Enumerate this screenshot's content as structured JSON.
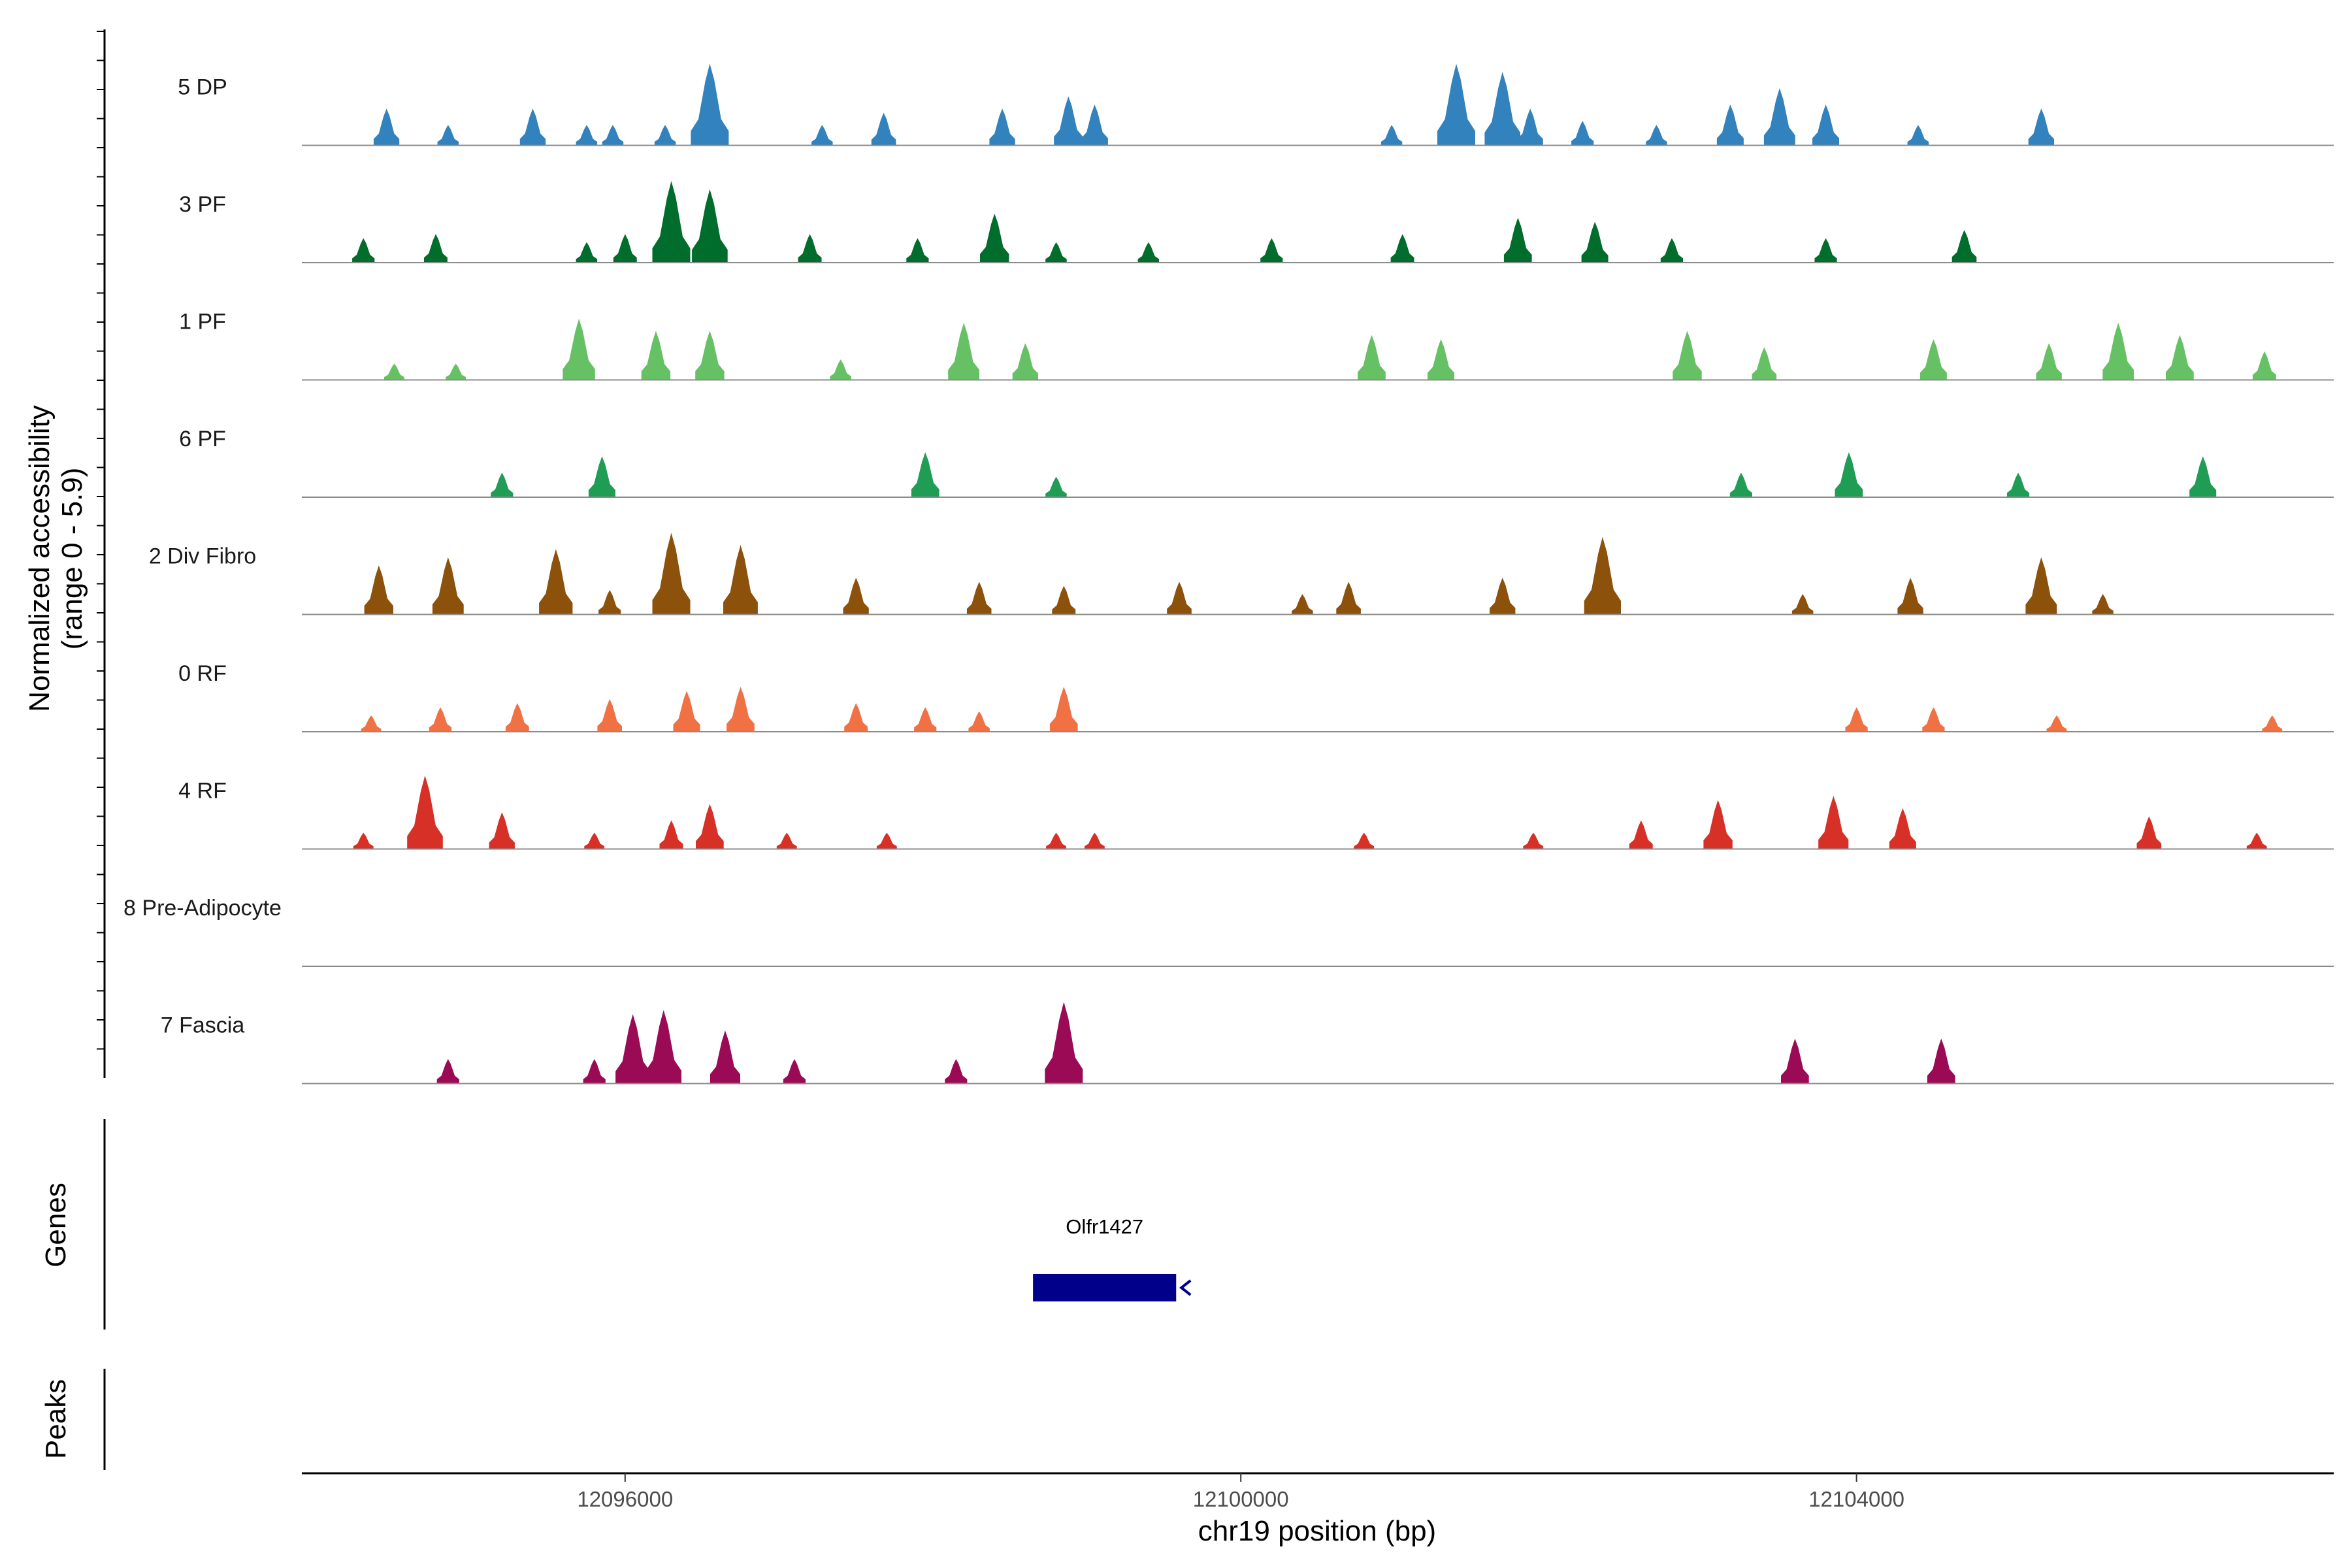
{
  "chart_data": {
    "type": "coverage",
    "ylabel": "Normalized accessibility",
    "ylabel_range": "(range 0 - 5.9)",
    "ylim": [
      0,
      5.9
    ],
    "xlabel": "chr19 position (bp)",
    "xlim": [
      12093900,
      12107100
    ],
    "x_ticks": [
      12096000,
      12100000,
      12104000
    ],
    "x_tick_labels": [
      "12096000",
      "12100000",
      "12104000"
    ],
    "tracks": [
      {
        "name": "5 DP",
        "color": "#3182bd",
        "peaks": [
          [
            12094450,
            0.45
          ],
          [
            12094850,
            0.25
          ],
          [
            12095400,
            0.45
          ],
          [
            12095750,
            0.25
          ],
          [
            12095920,
            0.25
          ],
          [
            12096260,
            0.25
          ],
          [
            12096550,
            1.0
          ],
          [
            12097280,
            0.25
          ],
          [
            12097680,
            0.4
          ],
          [
            12098450,
            0.45
          ],
          [
            12098880,
            0.6
          ],
          [
            12099050,
            0.5
          ],
          [
            12100980,
            0.25
          ],
          [
            12101400,
            1.0
          ],
          [
            12101700,
            0.9
          ],
          [
            12101880,
            0.45
          ],
          [
            12102220,
            0.3
          ],
          [
            12102700,
            0.25
          ],
          [
            12103180,
            0.5
          ],
          [
            12103500,
            0.7
          ],
          [
            12103800,
            0.5
          ],
          [
            12104400,
            0.25
          ],
          [
            12105200,
            0.45
          ]
        ]
      },
      {
        "name": "3 PF",
        "color": "#006d2c",
        "peaks": [
          [
            12094300,
            0.3
          ],
          [
            12094770,
            0.35
          ],
          [
            12095750,
            0.25
          ],
          [
            12096000,
            0.35
          ],
          [
            12096300,
            1.0
          ],
          [
            12096550,
            0.9
          ],
          [
            12097200,
            0.35
          ],
          [
            12097900,
            0.3
          ],
          [
            12098400,
            0.6
          ],
          [
            12098800,
            0.25
          ],
          [
            12099400,
            0.25
          ],
          [
            12100200,
            0.3
          ],
          [
            12101050,
            0.35
          ],
          [
            12101800,
            0.55
          ],
          [
            12102300,
            0.5
          ],
          [
            12102800,
            0.3
          ],
          [
            12103800,
            0.3
          ],
          [
            12104700,
            0.4
          ]
        ]
      },
      {
        "name": "1 PF",
        "color": "#66c164",
        "peaks": [
          [
            12094500,
            0.2
          ],
          [
            12094900,
            0.2
          ],
          [
            12095700,
            0.75
          ],
          [
            12096200,
            0.6
          ],
          [
            12096550,
            0.6
          ],
          [
            12097400,
            0.25
          ],
          [
            12098200,
            0.7
          ],
          [
            12098600,
            0.45
          ],
          [
            12100850,
            0.55
          ],
          [
            12101300,
            0.5
          ],
          [
            12102900,
            0.6
          ],
          [
            12103400,
            0.4
          ],
          [
            12104500,
            0.5
          ],
          [
            12105250,
            0.45
          ],
          [
            12105700,
            0.7
          ],
          [
            12106100,
            0.55
          ],
          [
            12106650,
            0.35
          ]
        ]
      },
      {
        "name": "6 PF",
        "color": "#1f9d55",
        "peaks": [
          [
            12095200,
            0.3
          ],
          [
            12095850,
            0.5
          ],
          [
            12097950,
            0.55
          ],
          [
            12098800,
            0.25
          ],
          [
            12103250,
            0.3
          ],
          [
            12103950,
            0.55
          ],
          [
            12105050,
            0.3
          ],
          [
            12106250,
            0.5
          ]
        ]
      },
      {
        "name": "2 Div Fibro",
        "color": "#8c510a",
        "peaks": [
          [
            12094400,
            0.6
          ],
          [
            12094850,
            0.7
          ],
          [
            12095550,
            0.8
          ],
          [
            12095900,
            0.3
          ],
          [
            12096300,
            1.0
          ],
          [
            12096750,
            0.85
          ],
          [
            12097500,
            0.45
          ],
          [
            12098300,
            0.4
          ],
          [
            12098850,
            0.35
          ],
          [
            12099600,
            0.4
          ],
          [
            12100400,
            0.25
          ],
          [
            12100700,
            0.4
          ],
          [
            12101700,
            0.45
          ],
          [
            12102350,
            0.95
          ],
          [
            12103650,
            0.25
          ],
          [
            12104350,
            0.45
          ],
          [
            12105200,
            0.7
          ],
          [
            12105600,
            0.25
          ]
        ]
      },
      {
        "name": "0 RF",
        "color": "#f07144",
        "peaks": [
          [
            12094350,
            0.2
          ],
          [
            12094800,
            0.3
          ],
          [
            12095300,
            0.35
          ],
          [
            12095900,
            0.4
          ],
          [
            12096400,
            0.5
          ],
          [
            12096750,
            0.55
          ],
          [
            12097500,
            0.35
          ],
          [
            12097950,
            0.3
          ],
          [
            12098300,
            0.25
          ],
          [
            12098850,
            0.55
          ],
          [
            12104000,
            0.3
          ],
          [
            12104500,
            0.3
          ],
          [
            12105300,
            0.2
          ],
          [
            12106700,
            0.2
          ]
        ]
      },
      {
        "name": "4 RF",
        "color": "#d73027",
        "peaks": [
          [
            12094300,
            0.2
          ],
          [
            12094700,
            0.9
          ],
          [
            12095200,
            0.45
          ],
          [
            12095800,
            0.2
          ],
          [
            12096300,
            0.35
          ],
          [
            12096550,
            0.55
          ],
          [
            12097050,
            0.2
          ],
          [
            12097700,
            0.2
          ],
          [
            12098800,
            0.2
          ],
          [
            12099050,
            0.2
          ],
          [
            12100800,
            0.2
          ],
          [
            12101900,
            0.2
          ],
          [
            12102600,
            0.35
          ],
          [
            12103100,
            0.6
          ],
          [
            12103850,
            0.65
          ],
          [
            12104300,
            0.5
          ],
          [
            12105900,
            0.4
          ],
          [
            12106600,
            0.2
          ]
        ]
      },
      {
        "name": "8 Pre-Adipocyte",
        "color": "#cccccc",
        "peaks": []
      },
      {
        "name": "7 Fascia",
        "color": "#9b0a55",
        "peaks": [
          [
            12094850,
            0.3
          ],
          [
            12095800,
            0.3
          ],
          [
            12096050,
            0.85
          ],
          [
            12096250,
            0.9
          ],
          [
            12096650,
            0.65
          ],
          [
            12097100,
            0.3
          ],
          [
            12098150,
            0.3
          ],
          [
            12098850,
            1.0
          ],
          [
            12103600,
            0.55
          ],
          [
            12104550,
            0.55
          ]
        ]
      }
    ],
    "genes": [
      {
        "name": "Olfr1427",
        "start": 12098650,
        "end": 12099580,
        "strand": "-",
        "color": "#00008b"
      }
    ],
    "panel_labels": {
      "genes": "Genes",
      "peaks": "Peaks"
    }
  }
}
